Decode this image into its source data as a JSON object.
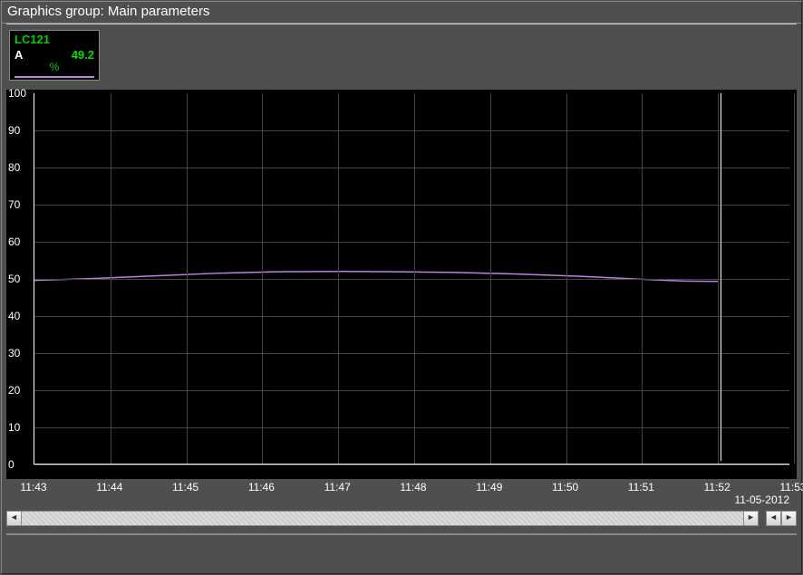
{
  "title": "Graphics group: Main parameters",
  "tag": {
    "name": "LC121",
    "mode": "A",
    "value": "49.2",
    "unit": "%",
    "legend_color": "#c080e0"
  },
  "date": "11-05-2012",
  "chart": {
    "type": "line",
    "background_color": "#000000",
    "grid_color": "#444444",
    "axis_color": "#ffffff",
    "tick_font_size": 12,
    "tick_color": "#ffffff",
    "line_color": "#c080e0",
    "line_width": 1.5,
    "ylim": [
      0,
      100
    ],
    "ytick_step": 10,
    "x_ticks": [
      "11:43",
      "11:44",
      "11:45",
      "11:46",
      "11:47",
      "11:48",
      "11:49",
      "11:50",
      "11:51",
      "11:52",
      "11:53"
    ],
    "x_values": [
      0,
      1,
      2,
      3,
      4,
      5,
      6,
      7,
      8,
      9,
      10
    ],
    "cursor_x": 9.05,
    "series": {
      "x": [
        0,
        0.8,
        1.6,
        2.4,
        3.2,
        4.0,
        4.8,
        5.6,
        6.4,
        7.2,
        8.0,
        8.6,
        9.05
      ],
      "y": [
        49.5,
        50.0,
        50.7,
        51.4,
        51.8,
        51.9,
        51.8,
        51.6,
        51.2,
        50.6,
        49.8,
        49.3,
        49.2
      ]
    }
  }
}
